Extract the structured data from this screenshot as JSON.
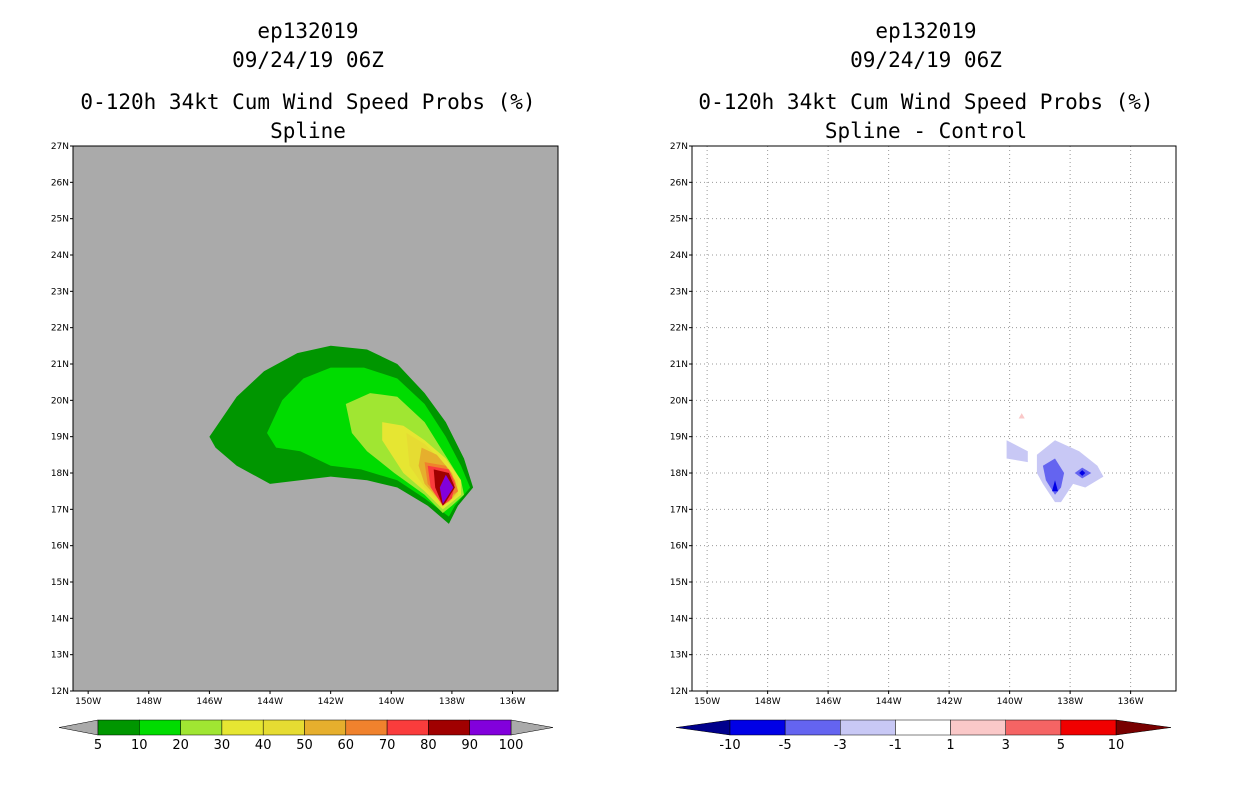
{
  "chart_data": [
    {
      "type": "contour",
      "title": [
        "ep132019",
        "09/24/19 06Z"
      ],
      "subtitle": [
        "0-120h 34kt Cum Wind Speed Probs (%)",
        "Spline"
      ],
      "x_ticks": [
        "150W",
        "148W",
        "146W",
        "144W",
        "142W",
        "140W",
        "138W",
        "136W"
      ],
      "y_ticks": [
        "12N",
        "13N",
        "14N",
        "15N",
        "16N",
        "17N",
        "18N",
        "19N",
        "20N",
        "21N",
        "22N",
        "23N",
        "24N",
        "25N",
        "26N",
        "27N"
      ],
      "xlim": [
        -150.5,
        -134.5
      ],
      "ylim": [
        12,
        27
      ],
      "grid": false,
      "background": "#aaaaaa",
      "colorbar_levels": [
        "5",
        "10",
        "20",
        "30",
        "40",
        "50",
        "60",
        "70",
        "80",
        "90",
        "100"
      ],
      "colorbar_colors": [
        "#009600",
        "#00dc00",
        "#a0e632",
        "#e6e632",
        "#e6dc32",
        "#e6af2d",
        "#f0822d",
        "#fa3c3c",
        "#a00000",
        "#8200dc"
      ],
      "colorbar_arrow_color": "#aaaaaa",
      "contours": [
        {
          "level": 5,
          "color": "#009600",
          "points": [
            [
              -146,
              19
            ],
            [
              -145.1,
              20.1
            ],
            [
              -144.2,
              20.8
            ],
            [
              -143.1,
              21.3
            ],
            [
              -142,
              21.5
            ],
            [
              -140.8,
              21.4
            ],
            [
              -139.8,
              21
            ],
            [
              -138.9,
              20.2
            ],
            [
              -138.2,
              19.4
            ],
            [
              -137.6,
              18.4
            ],
            [
              -137.3,
              17.6
            ],
            [
              -137.8,
              17.1
            ],
            [
              -138.1,
              16.6
            ],
            [
              -138.8,
              17.1
            ],
            [
              -139.8,
              17.6
            ],
            [
              -140.8,
              17.8
            ],
            [
              -142,
              17.9
            ],
            [
              -143,
              17.8
            ],
            [
              -144,
              17.7
            ],
            [
              -145.1,
              18.2
            ],
            [
              -145.8,
              18.7
            ]
          ]
        },
        {
          "level": 10,
          "color": "#00dc00",
          "points": [
            [
              -144.1,
              19.1
            ],
            [
              -143.6,
              20
            ],
            [
              -142.9,
              20.6
            ],
            [
              -142,
              20.9
            ],
            [
              -140.9,
              20.9
            ],
            [
              -139.8,
              20.6
            ],
            [
              -138.9,
              19.9
            ],
            [
              -138.2,
              19
            ],
            [
              -137.7,
              18.2
            ],
            [
              -137.4,
              17.6
            ],
            [
              -137.9,
              17.1
            ],
            [
              -138.1,
              16.8
            ],
            [
              -138.9,
              17.3
            ],
            [
              -139.8,
              17.8
            ],
            [
              -141,
              18.1
            ],
            [
              -142,
              18.2
            ],
            [
              -143,
              18.6
            ],
            [
              -143.8,
              18.7
            ]
          ]
        },
        {
          "level": 20,
          "color": "#a0e632",
          "points": [
            [
              -141.5,
              19.9
            ],
            [
              -140.7,
              20.2
            ],
            [
              -139.8,
              20.1
            ],
            [
              -138.9,
              19.4
            ],
            [
              -138.3,
              18.6
            ],
            [
              -137.7,
              17.8
            ],
            [
              -137.6,
              17.4
            ],
            [
              -138,
              17.1
            ],
            [
              -138.3,
              16.9
            ],
            [
              -138.9,
              17.4
            ],
            [
              -139.9,
              18
            ],
            [
              -140.8,
              18.6
            ],
            [
              -141.3,
              19.1
            ]
          ]
        },
        {
          "level": 30,
          "color": "#e6e632",
          "points": [
            [
              -140.3,
              19.4
            ],
            [
              -139.6,
              19.3
            ],
            [
              -138.9,
              18.9
            ],
            [
              -138.2,
              18.4
            ],
            [
              -137.7,
              17.8
            ],
            [
              -137.7,
              17.4
            ],
            [
              -138,
              17.2
            ],
            [
              -138.3,
              17
            ],
            [
              -138.9,
              17.5
            ],
            [
              -139.6,
              18
            ],
            [
              -140.3,
              18.9
            ]
          ]
        },
        {
          "level": 40,
          "color": "#e6dc32",
          "points": [
            [
              -139.5,
              19.1
            ],
            [
              -138.9,
              18.8
            ],
            [
              -138.3,
              18.3
            ],
            [
              -137.8,
              17.8
            ],
            [
              -137.8,
              17.4
            ],
            [
              -138.1,
              17.2
            ],
            [
              -138.3,
              17.1
            ],
            [
              -138.9,
              17.6
            ],
            [
              -139.4,
              18.2
            ]
          ]
        },
        {
          "level": 50,
          "color": "#e6af2d",
          "points": [
            [
              -139,
              18.7
            ],
            [
              -138.5,
              18.5
            ],
            [
              -138,
              18
            ],
            [
              -137.8,
              17.5
            ],
            [
              -138.1,
              17.2
            ],
            [
              -138.3,
              17.15
            ],
            [
              -138.9,
              17.7
            ],
            [
              -139.1,
              18.2
            ]
          ]
        },
        {
          "level": 60,
          "color": "#f0822d",
          "points": [
            [
              -138.9,
              18.3
            ],
            [
              -138.2,
              18.2
            ],
            [
              -137.9,
              17.8
            ],
            [
              -137.8,
              17.5
            ],
            [
              -138.3,
              17.2
            ],
            [
              -138.8,
              17.7
            ]
          ]
        },
        {
          "level": 70,
          "color": "#fa3c3c",
          "points": [
            [
              -138.8,
              18.2
            ],
            [
              -138.1,
              18.1
            ],
            [
              -137.9,
              17.7
            ],
            [
              -138,
              17.3
            ],
            [
              -138.3,
              17.1
            ],
            [
              -138.7,
              17.6
            ]
          ]
        },
        {
          "level": 80,
          "color": "#a00000",
          "points": [
            [
              -138.6,
              18.1
            ],
            [
              -138.1,
              18
            ],
            [
              -137.9,
              17.6
            ],
            [
              -138.2,
              17.2
            ],
            [
              -138.3,
              17.1
            ],
            [
              -138.55,
              17.6
            ]
          ]
        },
        {
          "level": 90,
          "color": "#8200dc",
          "points": [
            [
              -138.2,
              17.95
            ],
            [
              -137.95,
              17.6
            ],
            [
              -138.3,
              17.15
            ],
            [
              -138.4,
              17.6
            ]
          ]
        }
      ]
    },
    {
      "type": "contour",
      "title": [
        "ep132019",
        "09/24/19 06Z"
      ],
      "subtitle": [
        "0-120h 34kt Cum Wind Speed Probs (%)",
        "Spline - Control"
      ],
      "x_ticks": [
        "150W",
        "148W",
        "146W",
        "144W",
        "142W",
        "140W",
        "138W",
        "136W"
      ],
      "y_ticks": [
        "12N",
        "13N",
        "14N",
        "15N",
        "16N",
        "17N",
        "18N",
        "19N",
        "20N",
        "21N",
        "22N",
        "23N",
        "24N",
        "25N",
        "26N",
        "27N"
      ],
      "xlim": [
        -150.5,
        -134.5
      ],
      "ylim": [
        12,
        27
      ],
      "grid": true,
      "background": "#ffffff",
      "colorbar_levels": [
        "-10",
        "-5",
        "-3",
        "-1",
        "1",
        "3",
        "5",
        "10"
      ],
      "colorbar_colors": [
        "#0000e6",
        "#6464f0",
        "#c8c8f5",
        "#ffffff",
        "#fac8c8",
        "#f56464",
        "#f00000"
      ],
      "colorbar_arrow_left": "#00008c",
      "colorbar_arrow_right": "#780000",
      "contours": [
        {
          "level": -1,
          "color": "#c8c8f5",
          "points": [
            [
              -140.1,
              18.9
            ],
            [
              -139.4,
              18.6
            ],
            [
              -139.4,
              18.3
            ],
            [
              -140.1,
              18.4
            ]
          ]
        },
        {
          "level": -1,
          "color": "#c8c8f5",
          "points": [
            [
              -139.1,
              18.5
            ],
            [
              -138.5,
              18.9
            ],
            [
              -137.7,
              18.6
            ],
            [
              -137.1,
              18.2
            ],
            [
              -136.9,
              17.9
            ],
            [
              -137.5,
              17.6
            ],
            [
              -137.9,
              17.7
            ],
            [
              -138.3,
              17.2
            ],
            [
              -138.5,
              17.2
            ],
            [
              -138.9,
              17.7
            ],
            [
              -139.1,
              18
            ]
          ]
        },
        {
          "level": -3,
          "color": "#6464f0",
          "points": [
            [
              -138.9,
              18.2
            ],
            [
              -138.5,
              18.4
            ],
            [
              -138.2,
              18
            ],
            [
              -138.3,
              17.6
            ],
            [
              -138.5,
              17.4
            ],
            [
              -138.8,
              17.8
            ]
          ]
        },
        {
          "level": -3,
          "color": "#6464f0",
          "points": [
            [
              -137.6,
              18.15
            ],
            [
              -137.3,
              18
            ],
            [
              -137.6,
              17.85
            ],
            [
              -137.85,
              18
            ]
          ]
        },
        {
          "level": -5,
          "color": "#0000e6",
          "points": [
            [
              -138.5,
              17.8
            ],
            [
              -138.4,
              17.5
            ],
            [
              -138.6,
              17.5
            ]
          ]
        },
        {
          "level": -5,
          "color": "#0000e6",
          "points": [
            [
              -137.6,
              18.08
            ],
            [
              -137.5,
              18
            ],
            [
              -137.6,
              17.92
            ],
            [
              -137.7,
              18
            ]
          ]
        },
        {
          "level": 1,
          "color": "#fac8c8",
          "points": [
            [
              -139.6,
              19.65
            ],
            [
              -139.5,
              19.5
            ],
            [
              -139.7,
              19.5
            ]
          ]
        }
      ]
    }
  ]
}
